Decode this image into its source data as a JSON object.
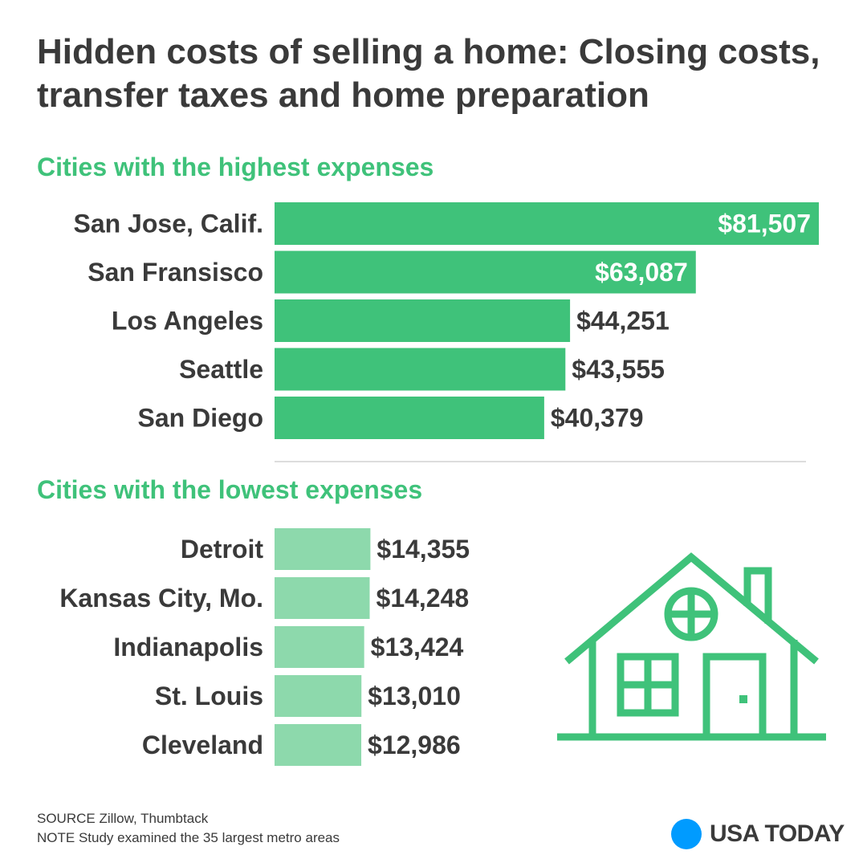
{
  "title": "Hidden costs of selling a home: Closing costs, transfer taxes and home preparation",
  "colors": {
    "high_bar": "#3fc27a",
    "low_bar": "#8dd9ac",
    "accent_text": "#3fc27a",
    "house_icon": "#3fc27a",
    "brand_dot": "#009bff"
  },
  "chart_data": [
    {
      "type": "bar",
      "orientation": "horizontal",
      "title": "Cities with the highest expenses",
      "categories": [
        "San Jose, Calif.",
        "San Fransisco",
        "Los Angeles",
        "Seattle",
        "San Diego"
      ],
      "values": [
        81507,
        63087,
        44251,
        43555,
        40379
      ],
      "value_labels": [
        "$81,507",
        "$63,087",
        "$44,251",
        "$43,555",
        "$40,379"
      ],
      "xlim": [
        0,
        81507
      ]
    },
    {
      "type": "bar",
      "orientation": "horizontal",
      "title": "Cities with the lowest expenses",
      "categories": [
        "Detroit",
        "Kansas City, Mo.",
        "Indianapolis",
        "St. Louis",
        "Cleveland"
      ],
      "values": [
        14355,
        14248,
        13424,
        13010,
        12986
      ],
      "value_labels": [
        "$14,355",
        "$14,248",
        "$13,424",
        "$13,010",
        "$12,986"
      ],
      "xlim": [
        0,
        81507
      ]
    }
  ],
  "footer": {
    "source": "SOURCE Zillow, Thumbtack",
    "note": "NOTE Study examined the 35 largest metro areas"
  },
  "brand": {
    "name": "USA TODAY"
  },
  "icons": {
    "house": "house-icon",
    "brand": "brand-dot-icon"
  }
}
